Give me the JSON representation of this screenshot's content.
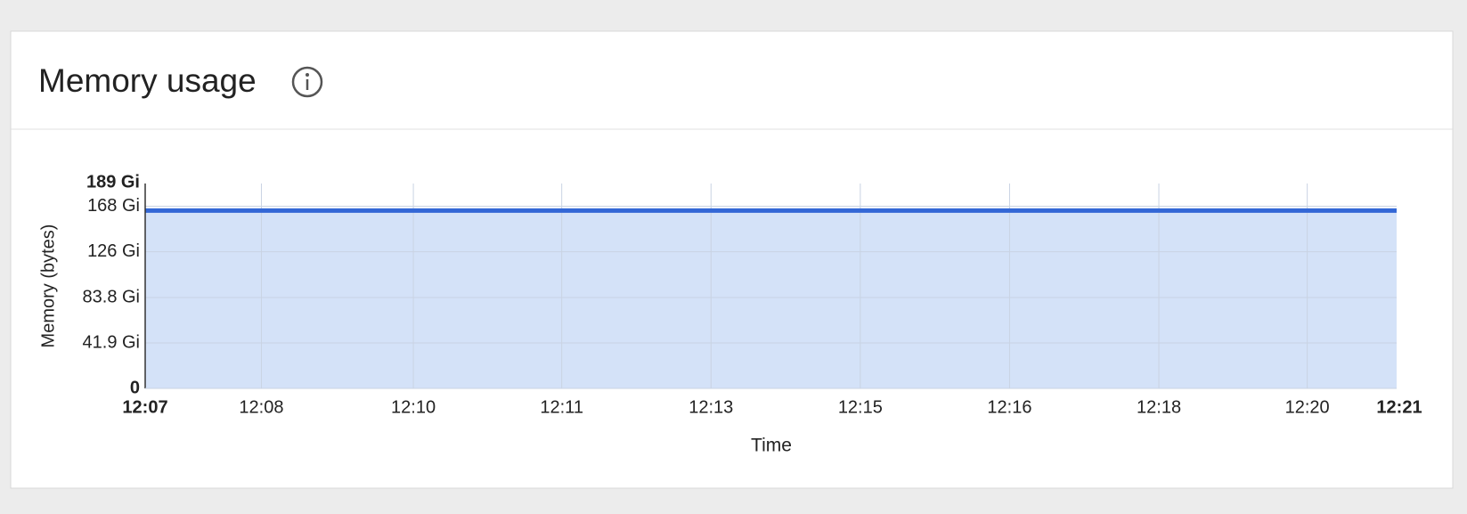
{
  "card": {
    "title": "Memory usage"
  },
  "chart_data": {
    "type": "area",
    "x_label": "Time",
    "y_label": "Memory (bytes)",
    "series": [
      {
        "name": "Memory",
        "color": "#3367d6",
        "fill": "#d4e2f8",
        "x": [
          727,
          741
        ],
        "values": [
          164,
          164
        ]
      }
    ],
    "xlim": [
      727,
      741
    ],
    "xticks": [
      {
        "value": 727,
        "label": "12:07"
      },
      {
        "value": 728.3,
        "label": "12:08"
      },
      {
        "value": 730,
        "label": "12:10"
      },
      {
        "value": 731.66,
        "label": "12:11"
      },
      {
        "value": 733.33,
        "label": "12:13"
      },
      {
        "value": 735,
        "label": "12:15"
      },
      {
        "value": 736.67,
        "label": "12:16"
      },
      {
        "value": 738.34,
        "label": "12:18"
      },
      {
        "value": 740,
        "label": "12:20"
      },
      {
        "value": 741,
        "label": "12:21"
      }
    ],
    "ylim": [
      0,
      189
    ],
    "yticks": [
      0,
      {
        "value": 41.9,
        "label": "41.9 Gi"
      },
      {
        "value": 83.8,
        "label": "83.8 Gi"
      },
      {
        "value": 126,
        "label": "126 Gi"
      },
      {
        "value": 168,
        "label": "168 Gi"
      },
      {
        "value": 189,
        "label": "189 Gi"
      }
    ],
    "grid": true
  }
}
